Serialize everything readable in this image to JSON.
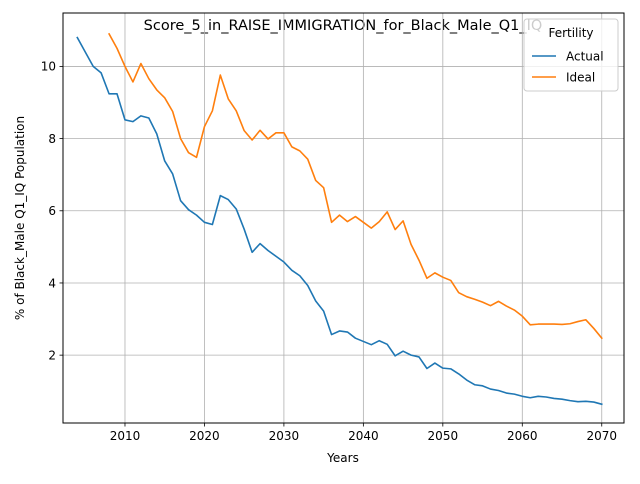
{
  "chart_data": {
    "type": "line",
    "title": "Score_5_in_RAISE_IMMIGRATION_for_Black_Male_Q1_IQ",
    "xlabel": "Years",
    "ylabel": "% of Black_Male Q1_IQ Population",
    "xlim": [
      2002.2,
      2072.8
    ],
    "ylim": [
      0.12,
      11.48
    ],
    "xticks": [
      2010,
      2020,
      2030,
      2040,
      2050,
      2060,
      2070
    ],
    "yticks": [
      2,
      4,
      6,
      8,
      10
    ],
    "grid": true,
    "legend": {
      "title": "Fertility",
      "placement": "top-right"
    },
    "series": [
      {
        "name": "Actual",
        "color": "#1f77b4",
        "x": [
          2004,
          2005,
          2006,
          2007,
          2008,
          2009,
          2010,
          2011,
          2012,
          2013,
          2014,
          2015,
          2016,
          2017,
          2018,
          2019,
          2020,
          2021,
          2022,
          2023,
          2024,
          2025,
          2026,
          2027,
          2028,
          2029,
          2030,
          2031,
          2032,
          2033,
          2034,
          2035,
          2036,
          2037,
          2038,
          2039,
          2040,
          2041,
          2042,
          2043,
          2044,
          2045,
          2046,
          2047,
          2048,
          2049,
          2050,
          2051,
          2052,
          2053,
          2054,
          2055,
          2056,
          2057,
          2058,
          2059,
          2060,
          2061,
          2062,
          2063,
          2064,
          2065,
          2066,
          2067,
          2068,
          2069,
          2070
        ],
        "values": [
          10.8,
          10.4,
          10.0,
          9.82,
          9.24,
          9.24,
          8.52,
          8.47,
          8.63,
          8.57,
          8.13,
          7.38,
          7.02,
          6.28,
          6.03,
          5.88,
          5.68,
          5.62,
          6.42,
          6.31,
          6.05,
          5.49,
          4.85,
          5.09,
          4.9,
          4.74,
          4.58,
          4.35,
          4.2,
          3.93,
          3.5,
          3.22,
          2.57,
          2.67,
          2.64,
          2.47,
          2.38,
          2.29,
          2.4,
          2.3,
          1.98,
          2.11,
          2.0,
          1.95,
          1.63,
          1.78,
          1.64,
          1.62,
          1.48,
          1.31,
          1.18,
          1.15,
          1.06,
          1.02,
          0.95,
          0.92,
          0.86,
          0.82,
          0.86,
          0.84,
          0.8,
          0.78,
          0.74,
          0.71,
          0.72,
          0.7,
          0.64
        ]
      },
      {
        "name": "Ideal",
        "color": "#ff7f0e",
        "x": [
          2008,
          2009,
          2010,
          2011,
          2012,
          2013,
          2014,
          2015,
          2016,
          2017,
          2018,
          2019,
          2020,
          2021,
          2022,
          2023,
          2024,
          2025,
          2026,
          2027,
          2028,
          2029,
          2030,
          2031,
          2032,
          2033,
          2034,
          2035,
          2036,
          2037,
          2038,
          2039,
          2040,
          2041,
          2042,
          2043,
          2044,
          2045,
          2046,
          2047,
          2048,
          2049,
          2050,
          2051,
          2052,
          2053,
          2054,
          2055,
          2056,
          2057,
          2058,
          2059,
          2060,
          2061,
          2062,
          2063,
          2064,
          2065,
          2066,
          2067,
          2068,
          2069,
          2070
        ],
        "values": [
          10.9,
          10.5,
          10.0,
          9.57,
          10.08,
          9.66,
          9.35,
          9.13,
          8.75,
          8.0,
          7.61,
          7.48,
          8.33,
          8.77,
          9.76,
          9.1,
          8.77,
          8.22,
          7.96,
          8.23,
          7.99,
          8.16,
          8.16,
          7.77,
          7.66,
          7.43,
          6.84,
          6.64,
          5.68,
          5.88,
          5.7,
          5.84,
          5.68,
          5.52,
          5.7,
          5.97,
          5.48,
          5.72,
          5.07,
          4.63,
          4.13,
          4.28,
          4.16,
          4.07,
          3.73,
          3.62,
          3.55,
          3.47,
          3.37,
          3.49,
          3.36,
          3.25,
          3.08,
          2.84,
          2.86,
          2.86,
          2.86,
          2.85,
          2.87,
          2.93,
          2.98,
          2.74,
          2.47
        ]
      }
    ]
  }
}
